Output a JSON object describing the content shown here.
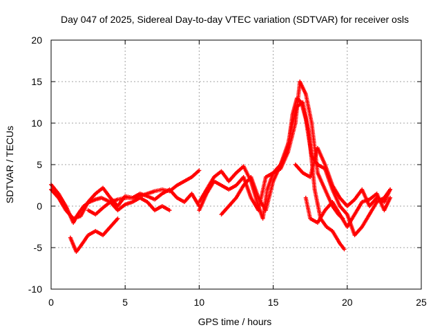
{
  "chart_data": {
    "type": "scatter",
    "title": "Day 047 of 2025, Sidereal Day-to-day VTEC variation (SDTVAR) for receiver osls",
    "xlabel": "GPS time / hours",
    "ylabel": "SDTVAR / TECUs",
    "xlim": [
      0,
      25
    ],
    "ylim": [
      -10,
      20
    ],
    "xticks": [
      "0",
      "5",
      "10",
      "15",
      "20",
      "25"
    ],
    "yticks": [
      "-10",
      "-5",
      "0",
      "5",
      "10",
      "15",
      "20"
    ],
    "grid": true,
    "marker": "+",
    "color": "#ff0000",
    "series": [
      {
        "name": "track-1",
        "x": [
          0.0,
          0.5,
          1.0,
          1.3,
          1.5,
          1.8,
          2.2,
          2.6,
          3.0,
          3.4,
          4.0,
          4.5,
          5.0,
          5.5,
          6.0,
          6.5,
          7.0,
          7.5,
          8.0,
          8.5,
          9.0,
          9.5,
          10.0
        ],
        "y": [
          2.6,
          1.5,
          0.0,
          -1.2,
          -2.0,
          -1.0,
          0.0,
          0.5,
          0.8,
          1.0,
          0.5,
          0.8,
          1.0,
          1.0,
          1.2,
          1.5,
          1.8,
          2.0,
          1.8,
          2.5,
          3.0,
          3.5,
          4.3
        ]
      },
      {
        "name": "track-2",
        "x": [
          0.0,
          0.5,
          1.0,
          1.5,
          2.0,
          2.5,
          3.0,
          3.5,
          4.0,
          4.5,
          5.0,
          5.5,
          6.0,
          6.5,
          7.0,
          7.5,
          8.0,
          8.5,
          9.0,
          9.5,
          10.0
        ],
        "y": [
          2.0,
          1.0,
          -0.5,
          -1.5,
          -1.2,
          0.5,
          1.5,
          2.2,
          1.0,
          0.0,
          1.2,
          1.0,
          1.5,
          1.2,
          0.8,
          1.5,
          2.0,
          1.0,
          0.5,
          1.5,
          0.0
        ]
      },
      {
        "name": "track-3",
        "x": [
          1.3,
          1.7,
          2.0,
          2.5,
          3.0,
          3.5,
          4.0,
          4.5
        ],
        "y": [
          -3.8,
          -5.5,
          -4.8,
          -3.5,
          -3.0,
          -3.5,
          -2.5,
          -1.5
        ]
      },
      {
        "name": "track-4",
        "x": [
          2.5,
          3.0,
          3.5,
          4.0,
          4.5,
          5.0,
          5.5,
          6.0,
          6.5,
          7.0,
          7.5,
          8.0
        ],
        "y": [
          -0.5,
          -1.0,
          -0.2,
          0.5,
          -0.5,
          0.2,
          0.5,
          1.0,
          0.5,
          -0.5,
          0.0,
          -0.5
        ]
      },
      {
        "name": "track-5",
        "x": [
          10.0,
          10.5,
          11.0,
          11.5,
          12.0,
          12.5,
          13.0,
          13.5,
          14.0,
          14.3,
          14.6,
          15.0,
          15.5,
          16.0,
          16.3,
          16.6,
          16.9,
          17.2,
          17.6,
          18.0,
          18.5,
          19.0,
          19.5,
          20.0,
          20.5,
          21.0,
          21.5,
          22.0,
          22.5,
          22.9
        ],
        "y": [
          0.5,
          2.0,
          3.5,
          4.2,
          3.0,
          4.0,
          4.8,
          3.0,
          0.0,
          -1.5,
          2.0,
          4.0,
          5.0,
          7.0,
          11.0,
          13.0,
          12.5,
          10.5,
          6.0,
          5.0,
          4.5,
          2.0,
          0.0,
          -1.0,
          -3.5,
          -2.5,
          -1.0,
          0.5,
          1.0,
          2.0
        ]
      },
      {
        "name": "track-6",
        "x": [
          10.0,
          10.5,
          11.0,
          11.5,
          12.0,
          12.5,
          13.0,
          13.5,
          14.0,
          14.5,
          15.0,
          15.5,
          16.0,
          16.5,
          16.8,
          17.2,
          17.6,
          18.0,
          18.5,
          19.0,
          19.4,
          19.7
        ],
        "y": [
          -0.5,
          1.5,
          3.0,
          2.5,
          2.0,
          2.5,
          3.5,
          1.0,
          -0.5,
          3.5,
          4.0,
          4.5,
          6.5,
          10.0,
          15.0,
          13.5,
          10.0,
          4.0,
          2.0,
          0.0,
          -1.0,
          -1.5
        ]
      },
      {
        "name": "track-7",
        "x": [
          11.5,
          12.0,
          12.5,
          13.0,
          13.5,
          14.0,
          14.5,
          15.0,
          15.5,
          16.0,
          16.3,
          16.6,
          17.0,
          17.4,
          17.8,
          18.2,
          18.6,
          19.0,
          19.5,
          19.8
        ],
        "y": [
          -1.0,
          0.0,
          1.0,
          2.5,
          3.5,
          1.0,
          -0.5,
          3.0,
          5.0,
          7.5,
          10.0,
          12.0,
          12.5,
          9.0,
          2.0,
          -1.5,
          -2.5,
          -3.0,
          -4.5,
          -5.2
        ]
      },
      {
        "name": "track-8",
        "x": [
          16.5,
          17.0,
          17.5,
          18.0,
          18.5,
          19.0,
          19.5,
          20.0,
          20.5,
          21.0,
          21.5,
          22.0,
          22.5,
          22.9
        ],
        "y": [
          5.0,
          4.0,
          3.5,
          7.0,
          5.0,
          2.5,
          1.0,
          0.0,
          0.8,
          2.0,
          0.0,
          1.0,
          0.5,
          2.0
        ]
      },
      {
        "name": "track-9",
        "x": [
          17.2,
          17.5,
          18.0,
          18.5,
          19.0,
          19.5,
          20.0,
          20.5,
          21.0,
          21.5,
          22.0,
          22.5,
          22.9
        ],
        "y": [
          1.0,
          -1.5,
          -2.0,
          -0.5,
          0.5,
          -1.0,
          -2.5,
          -1.0,
          0.5,
          0.8,
          1.5,
          -0.5,
          1.0
        ]
      }
    ]
  }
}
